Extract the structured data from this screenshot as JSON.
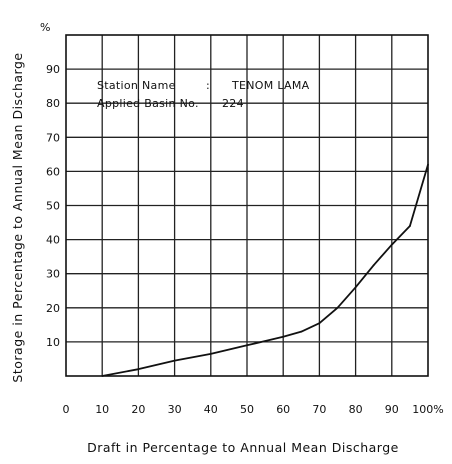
{
  "chart_data": {
    "type": "line",
    "xlabel": "Draft in Percentage to Annual Mean Discharge",
    "ylabel": "Storage in Percentage to Annual Mean Discharge",
    "y_unit": "%",
    "xlim": [
      0,
      100
    ],
    "ylim": [
      0,
      100
    ],
    "x_tick_labels": [
      "0",
      "10",
      "20",
      "30",
      "40",
      "50",
      "60",
      "70",
      "80",
      "90",
      "100%"
    ],
    "y_tick_labels": [
      "10",
      "20",
      "30",
      "40",
      "50",
      "60",
      "70",
      "80",
      "90"
    ],
    "grid": true,
    "annotations": {
      "station_label": "Station Name",
      "station_sep": ":",
      "station_value": "TENOM LAMA",
      "basin_label": "Applied Basin No.",
      "basin_value": "224"
    },
    "series": [
      {
        "x": [
          10,
          20,
          30,
          40,
          50,
          60,
          65,
          70,
          75,
          80,
          85,
          90,
          95,
          100
        ],
        "y": [
          0,
          2,
          4.5,
          6.5,
          9,
          11.5,
          13,
          15.5,
          20,
          26,
          32.5,
          38.5,
          44,
          62
        ]
      }
    ]
  }
}
